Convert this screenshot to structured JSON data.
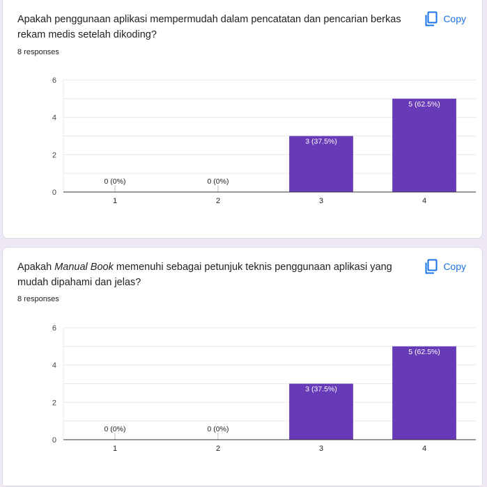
{
  "cards": [
    {
      "question_parts": [
        {
          "text": "Apakah penggunaan aplikasi mempermudah dalam pencatatan dan pencarian berkas rekam medis setelah dikoding?",
          "italic": false
        }
      ],
      "responses": "8 responses",
      "copy_label": "Copy"
    },
    {
      "question_parts": [
        {
          "text": "Apakah ",
          "italic": false
        },
        {
          "text": "Manual Book",
          "italic": true
        },
        {
          "text": " memenuhi sebagai petunjuk teknis penggunaan aplikasi yang mudah dipahami dan jelas?",
          "italic": false
        }
      ],
      "responses": "8 responses",
      "copy_label": "Copy"
    }
  ],
  "colors": {
    "bar": "#673ab7",
    "grid": "#e8e8e8",
    "axis": "#333333",
    "accent": "#1a73e8",
    "page_bg": "#ede7f6"
  },
  "icons": {
    "copy": "copy-icon"
  },
  "chart_data": [
    {
      "type": "bar",
      "title": "Apakah penggunaan aplikasi mempermudah dalam pencatatan dan pencarian berkas rekam medis setelah dikoding?",
      "categories": [
        "1",
        "2",
        "3",
        "4"
      ],
      "values": [
        0,
        0,
        3,
        5
      ],
      "data_labels": [
        "0 (0%)",
        "0 (0%)",
        "3 (37.5%)",
        "5 (62.5%)"
      ],
      "yticks": [
        "0",
        "2",
        "4",
        "6"
      ],
      "ylim": [
        0,
        6
      ],
      "xlabel": "",
      "ylabel": ""
    },
    {
      "type": "bar",
      "title": "Apakah Manual Book memenuhi sebagai petunjuk teknis penggunaan aplikasi yang mudah dipahami dan jelas?",
      "categories": [
        "1",
        "2",
        "3",
        "4"
      ],
      "values": [
        0,
        0,
        3,
        5
      ],
      "data_labels": [
        "0 (0%)",
        "0 (0%)",
        "3 (37.5%)",
        "5 (62.5%)"
      ],
      "yticks": [
        "0",
        "2",
        "4",
        "6"
      ],
      "ylim": [
        0,
        6
      ],
      "xlabel": "",
      "ylabel": ""
    }
  ]
}
